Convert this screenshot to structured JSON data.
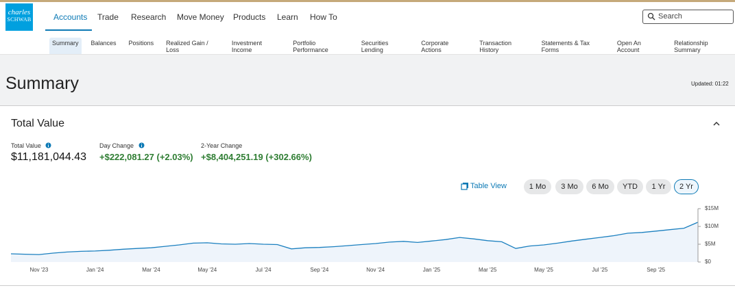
{
  "logo": {
    "line1": "charles",
    "line2": "SCHWAB"
  },
  "nav": {
    "items": [
      "Accounts",
      "Trade",
      "Research",
      "Move Money",
      "Products",
      "Learn",
      "How To"
    ],
    "search": "Search"
  },
  "subnav": {
    "items": [
      "Summary",
      "Balances",
      "Positions",
      "Realized Gain / Loss",
      "Investment Income",
      "Portfolio Performance",
      "Securities Lending",
      "Corporate Actions",
      "Transaction History",
      "Statements & Tax Forms",
      "Open An Account",
      "Relationship Summary"
    ]
  },
  "header": {
    "title": "Summary",
    "updated": "Updated: 01:22"
  },
  "card": {
    "title": "Total Value",
    "metrics": [
      {
        "label": "Total Value",
        "value": "$11,181,044.43"
      },
      {
        "label": "Day Change",
        "value": "+$222,081.27 (+2.03%)"
      },
      {
        "label": "2-Year Change",
        "value": "+$8,404,251.19 (+302.66%)"
      }
    ],
    "table_view": "Table View",
    "ranges": [
      "1 Mo",
      "3 Mo",
      "6 Mo",
      "YTD",
      "1 Yr",
      "2 Yr"
    ]
  },
  "chart_data": {
    "type": "line",
    "color": "#1a7fbf",
    "area_color": "#eef4fb",
    "categories": [
      null,
      null,
      "Nov '23",
      null,
      null,
      null,
      "Jan '24",
      null,
      null,
      null,
      "Mar '24",
      null,
      null,
      null,
      "May '24",
      null,
      null,
      null,
      "Jul '24",
      null,
      null,
      null,
      "Sep '24",
      null,
      null,
      null,
      "Nov '24",
      null,
      null,
      null,
      "Jan '25",
      null,
      null,
      null,
      "Mar '25",
      null,
      null,
      null,
      "May '25",
      null,
      null,
      null,
      "Jul '25",
      null,
      null,
      null,
      "Sep '25",
      null,
      null,
      null
    ],
    "values": [
      2300000,
      2200000,
      2100000,
      2500000,
      2800000,
      3000000,
      3100000,
      3300000,
      3600000,
      3800000,
      4000000,
      4400000,
      4800000,
      5300000,
      5400000,
      5100000,
      5000000,
      5200000,
      5000000,
      4900000,
      3700000,
      4000000,
      4100000,
      4300000,
      4600000,
      4900000,
      5200000,
      5600000,
      5800000,
      5500000,
      5900000,
      6300000,
      6900000,
      6500000,
      6000000,
      5700000,
      3800000,
      4500000,
      4800000,
      5300000,
      5900000,
      6400000,
      6900000,
      7400000,
      8100000,
      8300000,
      8700000,
      9100000,
      9500000,
      11200000
    ],
    "ylim": [
      0,
      15000000
    ],
    "yticks": [
      {
        "value": 0,
        "label": "$0"
      },
      {
        "value": 5000000,
        "label": "$5M"
      },
      {
        "value": 10000000,
        "label": "$10M"
      },
      {
        "value": 15000000,
        "label": "$15M"
      }
    ]
  }
}
